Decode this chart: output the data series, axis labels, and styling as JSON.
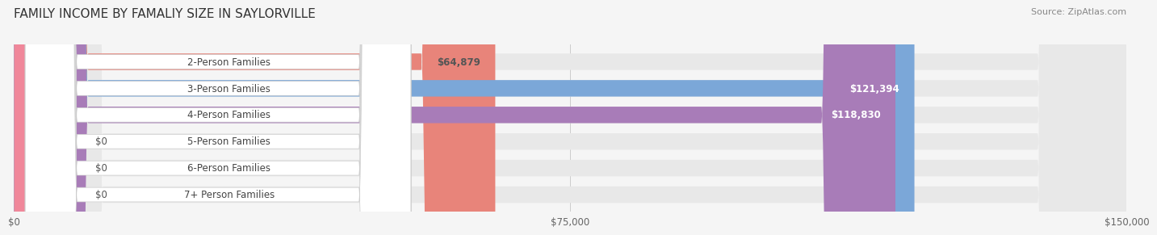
{
  "title": "FAMILY INCOME BY FAMALIY SIZE IN SAYLORVILLE",
  "source": "Source: ZipAtlas.com",
  "categories": [
    "2-Person Families",
    "3-Person Families",
    "4-Person Families",
    "5-Person Families",
    "6-Person Families",
    "7+ Person Families"
  ],
  "values": [
    64879,
    121394,
    118830,
    0,
    0,
    0
  ],
  "bar_colors": [
    "#E8847A",
    "#7BA7D8",
    "#A87CB8",
    "#5BBDBD",
    "#A9A8D8",
    "#F0879A"
  ],
  "label_colors": [
    "#555555",
    "#ffffff",
    "#ffffff",
    "#555555",
    "#555555",
    "#555555"
  ],
  "value_labels": [
    "$64,879",
    "$121,394",
    "$118,830",
    "$0",
    "$0",
    "$0"
  ],
  "xlim": [
    0,
    150000
  ],
  "xtick_values": [
    0,
    75000,
    150000
  ],
  "xtick_labels": [
    "$0",
    "$75,000",
    "$150,000"
  ],
  "background_color": "#f5f5f5",
  "bar_bg_color": "#e8e8e8",
  "title_fontsize": 11,
  "source_fontsize": 8,
  "label_fontsize": 8.5,
  "value_fontsize": 8.5,
  "bar_height": 0.62,
  "figsize": [
    14.06,
    3.05
  ]
}
